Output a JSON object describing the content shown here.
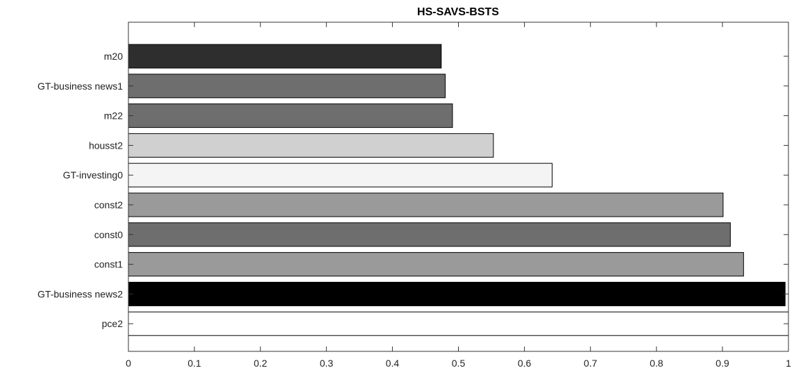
{
  "chart_data": {
    "type": "bar",
    "orientation": "horizontal",
    "title": "HS-SAVS-BSTS",
    "xlabel": "",
    "ylabel": "",
    "xlim": [
      0,
      1
    ],
    "x_ticks": [
      0,
      0.1,
      0.2,
      0.3,
      0.4,
      0.5,
      0.6,
      0.7,
      0.8,
      0.9,
      1
    ],
    "x_tick_labels": [
      "0",
      "0.1",
      "0.2",
      "0.3",
      "0.4",
      "0.5",
      "0.6",
      "0.7",
      "0.8",
      "0.9",
      "1"
    ],
    "grid": false,
    "categories": [
      "m20",
      "GT-business news1",
      "m22",
      "housst2",
      "GT-investing0",
      "const2",
      "const0",
      "const1",
      "GT-business news2",
      "pce2"
    ],
    "values": [
      0.474,
      0.48,
      0.491,
      0.553,
      0.642,
      0.901,
      0.912,
      0.932,
      0.995,
      1.0
    ],
    "bar_colors": [
      "#2e2e2e",
      "#6e6e6e",
      "#6e6e6e",
      "#d0d0d0",
      "#f4f4f4",
      "#9a9a9a",
      "#6e6e6e",
      "#9a9a9a",
      "#000000",
      "#ffffff"
    ]
  }
}
